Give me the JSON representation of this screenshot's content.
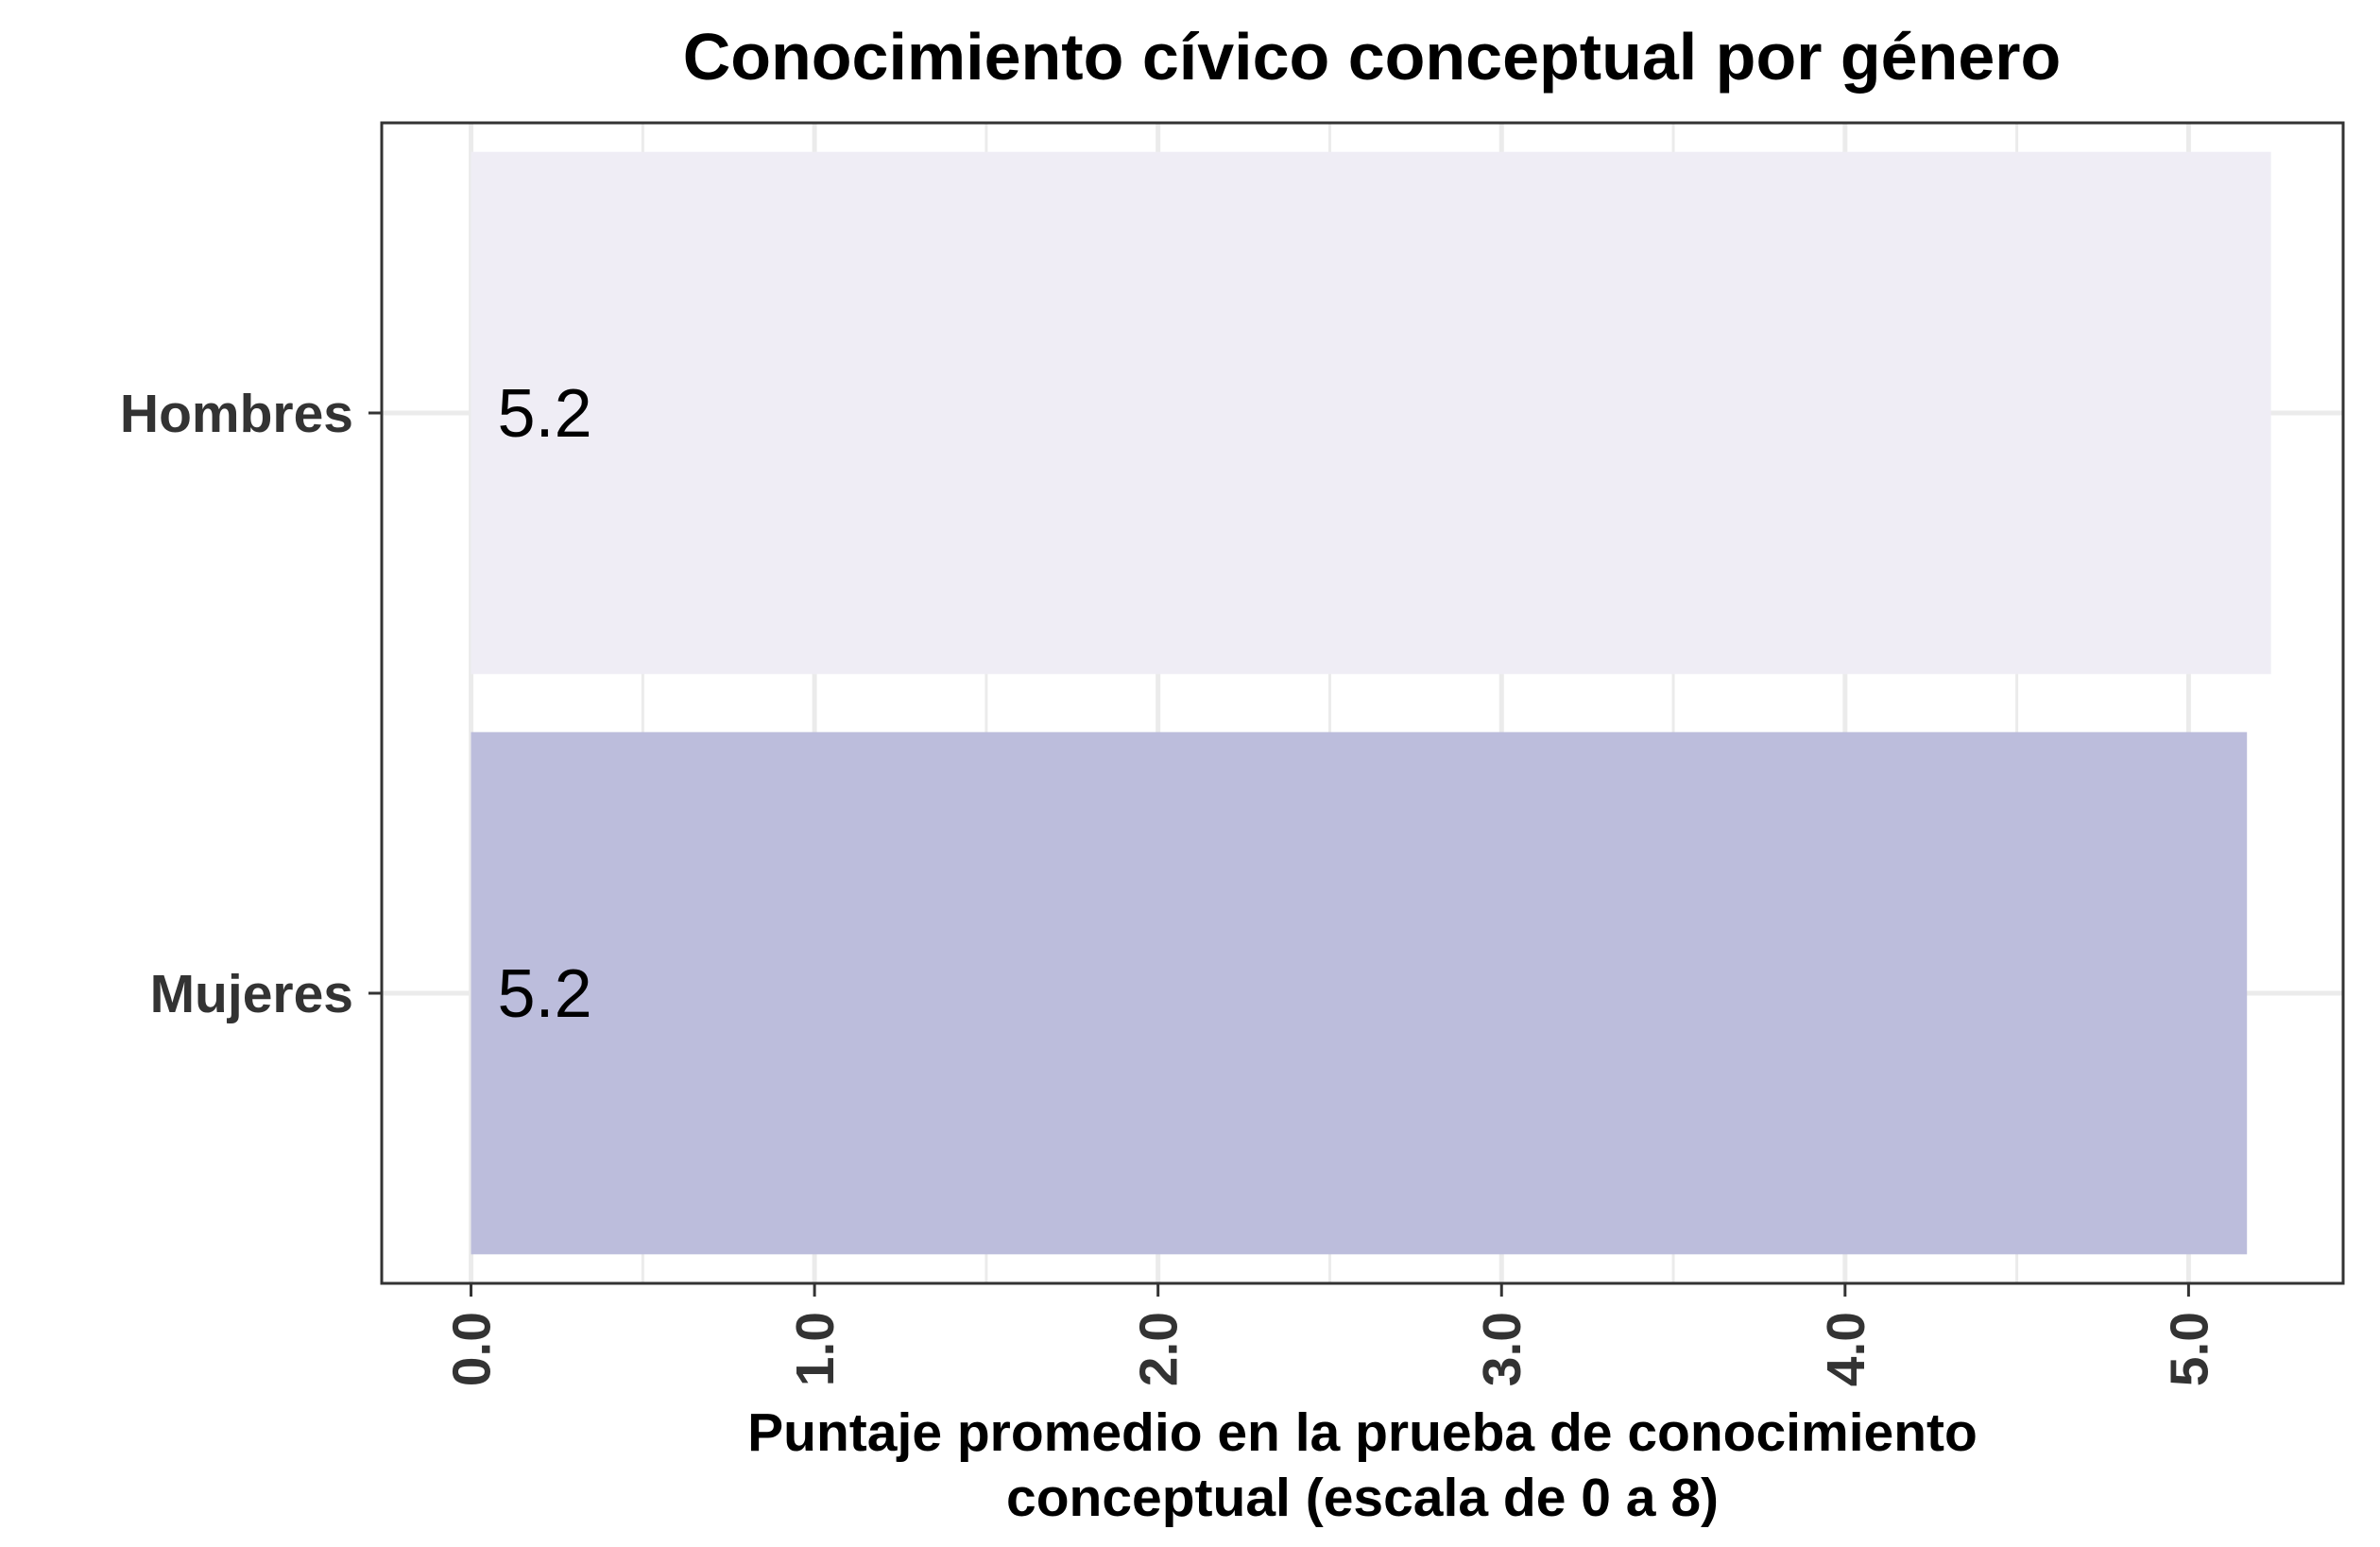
{
  "chart_data": {
    "type": "bar",
    "orientation": "horizontal",
    "title": "Conocimiento cívico conceptual por género",
    "xlabel_lines": [
      "Puntaje promedio en la prueba de conocimiento",
      "conceptual (escala de 0 a 8)"
    ],
    "ylabel": "",
    "categories": [
      "Mujeres",
      "Hombres"
    ],
    "values": [
      5.17,
      5.24
    ],
    "data_labels": [
      "5.2",
      "5.2"
    ],
    "bar_colors": [
      "#bcbddc",
      "#efedf5"
    ],
    "xlim": [
      -0.26,
      5.45
    ],
    "x_ticks": [
      0,
      1,
      2,
      3,
      4,
      5
    ],
    "x_tick_labels": [
      "0.0",
      "1.0",
      "2.0",
      "3.0",
      "4.0",
      "5.0"
    ],
    "grid": true,
    "legend": "none"
  }
}
